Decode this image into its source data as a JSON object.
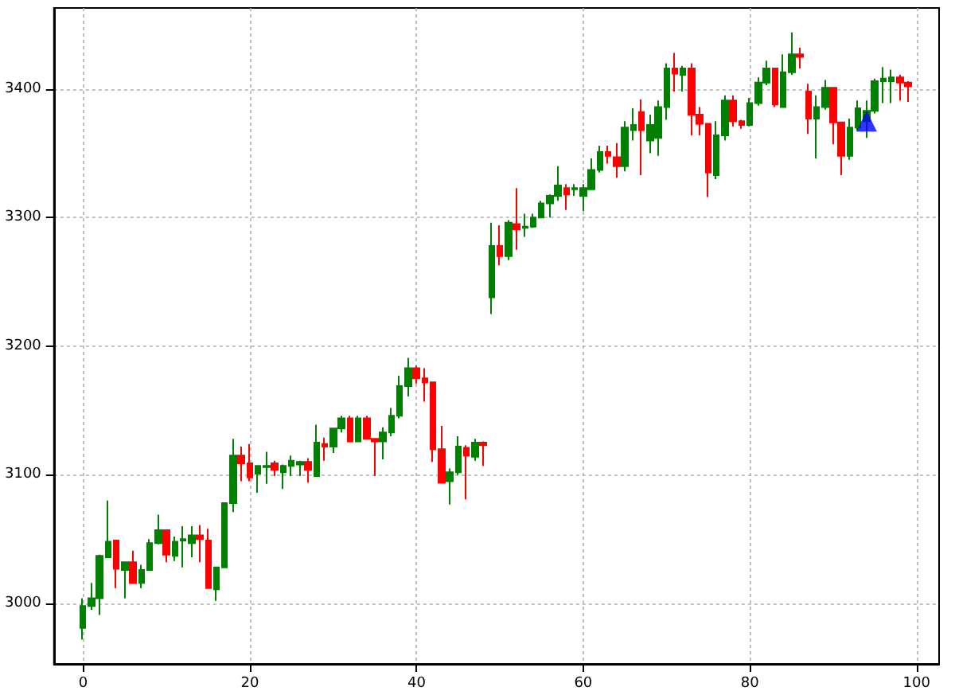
{
  "chart_data": {
    "type": "candlestick",
    "xlim": [
      -3.5,
      102.7
    ],
    "xticks": [
      0,
      20,
      40,
      60,
      80,
      100
    ],
    "ylim": [
      2953,
      3463
    ],
    "yticks": [
      3000,
      3100,
      3200,
      3300,
      3400
    ],
    "grid": true,
    "series": [
      {
        "type": "candlestick",
        "x": [
          0,
          1,
          2,
          3,
          4,
          5,
          6,
          7,
          8,
          9,
          10,
          11,
          12,
          13,
          14,
          15,
          16,
          17,
          18,
          19,
          20,
          21,
          22,
          23,
          24,
          25,
          26,
          27,
          28,
          29,
          30,
          31,
          32,
          33,
          34,
          35,
          36,
          37,
          38,
          39,
          40,
          41,
          42,
          43,
          44,
          45,
          46,
          47,
          48,
          49,
          50,
          51,
          52,
          53,
          54,
          55,
          56,
          57,
          58,
          59,
          60,
          61,
          62,
          63,
          64,
          65,
          66,
          67,
          68,
          69,
          70,
          71,
          72,
          73,
          74,
          75,
          76,
          77,
          78,
          79,
          80,
          81,
          82,
          83,
          84,
          85,
          86,
          87,
          88,
          89,
          90,
          91,
          92,
          93,
          94,
          95,
          96,
          97,
          98,
          99
        ],
        "ohlc": [
          [
            2981,
            3004,
            2972,
            2998
          ],
          [
            2998,
            3016,
            2995,
            3004
          ],
          [
            3004,
            3038,
            2991,
            3037
          ],
          [
            3036,
            3080,
            3036,
            3048
          ],
          [
            3049,
            3049,
            3012,
            3027
          ],
          [
            3026,
            3032,
            3004,
            3032
          ],
          [
            3032,
            3041,
            3016,
            3016
          ],
          [
            3016,
            3030,
            3012,
            3026
          ],
          [
            3026,
            3050,
            3026,
            3047
          ],
          [
            3047,
            3069,
            3046,
            3057
          ],
          [
            3057,
            3057,
            3032,
            3038
          ],
          [
            3037,
            3052,
            3033,
            3048
          ],
          [
            3049,
            3060,
            3028,
            3050
          ],
          [
            3047,
            3060,
            3036,
            3053
          ],
          [
            3053,
            3061,
            3032,
            3050
          ],
          [
            3049,
            3058,
            3012,
            3012
          ],
          [
            3011,
            3028,
            3002,
            3028
          ],
          [
            3028,
            3078,
            3028,
            3078
          ],
          [
            3078,
            3128,
            3071,
            3115
          ],
          [
            3115,
            3122,
            3095,
            3109
          ],
          [
            3109,
            3124,
            3095,
            3098
          ],
          [
            3101,
            3107,
            3086,
            3107
          ],
          [
            3106,
            3118,
            3093,
            3107
          ],
          [
            3109,
            3111,
            3099,
            3104
          ],
          [
            3102,
            3108,
            3089,
            3107
          ],
          [
            3107,
            3115,
            3099,
            3111
          ],
          [
            3108,
            3111,
            3099,
            3110
          ],
          [
            3110,
            3113,
            3094,
            3104
          ],
          [
            3099,
            3139,
            3099,
            3125
          ],
          [
            3124,
            3129,
            3111,
            3122
          ],
          [
            3122,
            3136,
            3117,
            3136
          ],
          [
            3136,
            3146,
            3133,
            3144
          ],
          [
            3144,
            3146,
            3126,
            3126
          ],
          [
            3126,
            3146,
            3126,
            3144
          ],
          [
            3144,
            3146,
            3128,
            3128
          ],
          [
            3128,
            3128,
            3099,
            3126
          ],
          [
            3126,
            3137,
            3112,
            3133
          ],
          [
            3133,
            3152,
            3130,
            3146
          ],
          [
            3146,
            3177,
            3144,
            3169
          ],
          [
            3169,
            3191,
            3161,
            3183
          ],
          [
            3183,
            3185,
            3171,
            3175
          ],
          [
            3175,
            3183,
            3157,
            3172
          ],
          [
            3172,
            3172,
            3110,
            3120
          ],
          [
            3120,
            3138,
            3094,
            3094
          ],
          [
            3095,
            3105,
            3077,
            3102
          ],
          [
            3102,
            3130,
            3100,
            3122
          ],
          [
            3121,
            3123,
            3081,
            3115
          ],
          [
            3114,
            3128,
            3111,
            3125
          ],
          [
            3125,
            3126,
            3107,
            3123
          ],
          [
            3238,
            3296,
            3225,
            3278
          ],
          [
            3278,
            3294,
            3263,
            3270
          ],
          [
            3270,
            3298,
            3267,
            3296
          ],
          [
            3295,
            3323,
            3275,
            3291
          ],
          [
            3292,
            3303,
            3285,
            3293
          ],
          [
            3293,
            3303,
            3292,
            3300
          ],
          [
            3300,
            3313,
            3300,
            3311
          ],
          [
            3311,
            3318,
            3300,
            3317
          ],
          [
            3317,
            3340,
            3313,
            3325
          ],
          [
            3323,
            3326,
            3306,
            3318
          ],
          [
            3322,
            3326,
            3317,
            3323
          ],
          [
            3317,
            3326,
            3305,
            3323
          ],
          [
            3322,
            3346,
            3322,
            3337
          ],
          [
            3337,
            3356,
            3335,
            3351
          ],
          [
            3351,
            3356,
            3342,
            3348
          ],
          [
            3347,
            3358,
            3331,
            3340
          ],
          [
            3340,
            3375,
            3336,
            3370
          ],
          [
            3368,
            3385,
            3360,
            3372
          ],
          [
            3382,
            3392,
            3333,
            3368
          ],
          [
            3360,
            3380,
            3350,
            3372
          ],
          [
            3362,
            3391,
            3348,
            3386
          ],
          [
            3386,
            3420,
            3376,
            3416
          ],
          [
            3416,
            3428,
            3398,
            3412
          ],
          [
            3411,
            3418,
            3398,
            3416
          ],
          [
            3416,
            3420,
            3364,
            3380
          ],
          [
            3380,
            3386,
            3364,
            3373
          ],
          [
            3373,
            3373,
            3316,
            3335
          ],
          [
            3333,
            3375,
            3330,
            3364
          ],
          [
            3364,
            3395,
            3360,
            3391
          ],
          [
            3391,
            3395,
            3371,
            3375
          ],
          [
            3375,
            3376,
            3369,
            3372
          ],
          [
            3372,
            3393,
            3371,
            3389
          ],
          [
            3389,
            3409,
            3387,
            3405
          ],
          [
            3405,
            3422,
            3403,
            3416
          ],
          [
            3416,
            3416,
            3386,
            3388
          ],
          [
            3386,
            3427,
            3386,
            3413
          ],
          [
            3413,
            3444,
            3411,
            3427
          ],
          [
            3427,
            3432,
            3416,
            3425
          ],
          [
            3398,
            3404,
            3365,
            3377
          ],
          [
            3377,
            3395,
            3346,
            3386
          ],
          [
            3386,
            3407,
            3384,
            3401
          ],
          [
            3401,
            3401,
            3357,
            3374
          ],
          [
            3374,
            3374,
            3333,
            3348
          ],
          [
            3348,
            3377,
            3345,
            3370
          ],
          [
            3370,
            3391,
            3368,
            3385
          ],
          [
            3375,
            3391,
            3362,
            3383
          ],
          [
            3383,
            3408,
            3381,
            3406
          ],
          [
            3406,
            3417,
            3389,
            3408
          ],
          [
            3406,
            3415,
            3389,
            3409
          ],
          [
            3409,
            3411,
            3391,
            3405
          ],
          [
            3405,
            3406,
            3390,
            3402
          ]
        ],
        "colors": [
          "#008000",
          "#008000",
          "#008000",
          "#008000",
          "#ff0000",
          "#008000",
          "#ff0000",
          "#008000",
          "#008000",
          "#008000",
          "#ff0000",
          "#008000",
          "#008000",
          "#008000",
          "#ff0000",
          "#ff0000",
          "#008000",
          "#008000",
          "#008000",
          "#ff0000",
          "#ff0000",
          "#008000",
          "#008000",
          "#ff0000",
          "#008000",
          "#008000",
          "#008000",
          "#ff0000",
          "#008000",
          "#ff0000",
          "#008000",
          "#008000",
          "#ff0000",
          "#008000",
          "#ff0000",
          "#ff0000",
          "#008000",
          "#008000",
          "#008000",
          "#008000",
          "#ff0000",
          "#ff0000",
          "#ff0000",
          "#ff0000",
          "#008000",
          "#008000",
          "#ff0000",
          "#008000",
          "#ff0000",
          "#008000",
          "#ff0000",
          "#008000",
          "#ff0000",
          "#008000",
          "#008000",
          "#008000",
          "#008000",
          "#008000",
          "#ff0000",
          "#008000",
          "#008000",
          "#008000",
          "#008000",
          "#ff0000",
          "#ff0000",
          "#008000",
          "#008000",
          "#ff0000",
          "#008000",
          "#008000",
          "#008000",
          "#ff0000",
          "#008000",
          "#ff0000",
          "#ff0000",
          "#ff0000",
          "#008000",
          "#008000",
          "#ff0000",
          "#ff0000",
          "#008000",
          "#008000",
          "#008000",
          "#ff0000",
          "#008000",
          "#008000",
          "#ff0000",
          "#ff0000",
          "#008000",
          "#008000",
          "#ff0000",
          "#ff0000",
          "#008000",
          "#008000",
          "#008000",
          "#008000",
          "#008000",
          "#008000",
          "#ff0000",
          "#ff0000"
        ]
      },
      {
        "type": "scatter",
        "x": [
          94
        ],
        "values": [
          3375
        ],
        "color": "#0000ff",
        "marker": "triangle"
      }
    ]
  }
}
